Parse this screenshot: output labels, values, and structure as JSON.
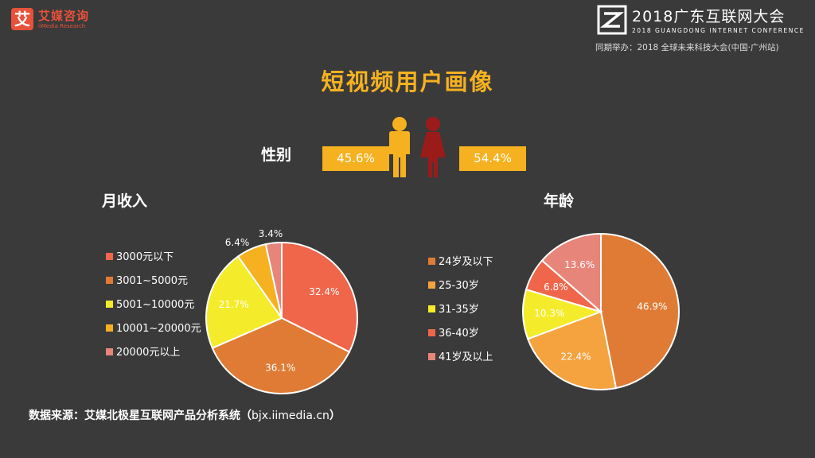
{
  "header": {
    "logo_mark": "艾",
    "logo_name": "艾媒咨询",
    "logo_sub": "iiMedia Research",
    "conf_title": "2018广东互联网大会",
    "conf_en": "2018 GUANGDONG INTERNET CONFERENCE",
    "conf_co": "同期举办：2018 全球未来科技大会(中国·广州站)"
  },
  "main_title": "短视频用户画像",
  "gender": {
    "label": "性别",
    "male_value": "45.6%",
    "female_value": "54.4%",
    "male_color": "#f5b120",
    "female_color": "#9b1b1b"
  },
  "income_label": "月收入",
  "age_label": "年龄",
  "source": {
    "text": "数据来源：艾媒北极星互联网产品分析系统（",
    "url": "bjx.iimedia.cn",
    "close": "）"
  },
  "chart_data": [
    {
      "type": "pie",
      "title": "月收入",
      "categories": [
        "3000元以下",
        "3001~5000元",
        "5001~10000元",
        "10001~20000元",
        "20000元以上"
      ],
      "values": [
        32.4,
        36.1,
        21.7,
        6.4,
        3.4
      ],
      "labels": [
        "32.4%",
        "36.1%",
        "21.7%",
        "6.4%",
        "3.4%"
      ],
      "colors": [
        "#f0664a",
        "#e07b35",
        "#f4ec2a",
        "#f5b120",
        "#e8857a"
      ],
      "legend_position": "left"
    },
    {
      "type": "pie",
      "title": "年龄",
      "categories": [
        "24岁及以下",
        "25-30岁",
        "31-35岁",
        "36-40岁",
        "41岁及以上"
      ],
      "values": [
        46.9,
        22.4,
        10.3,
        6.8,
        13.6
      ],
      "labels": [
        "46.9%",
        "22.4%",
        "10.3%",
        "6.8%",
        "13.6%"
      ],
      "colors": [
        "#e07b35",
        "#f5a33f",
        "#f4ec2a",
        "#f0664a",
        "#e8857a"
      ],
      "legend_position": "left"
    }
  ]
}
